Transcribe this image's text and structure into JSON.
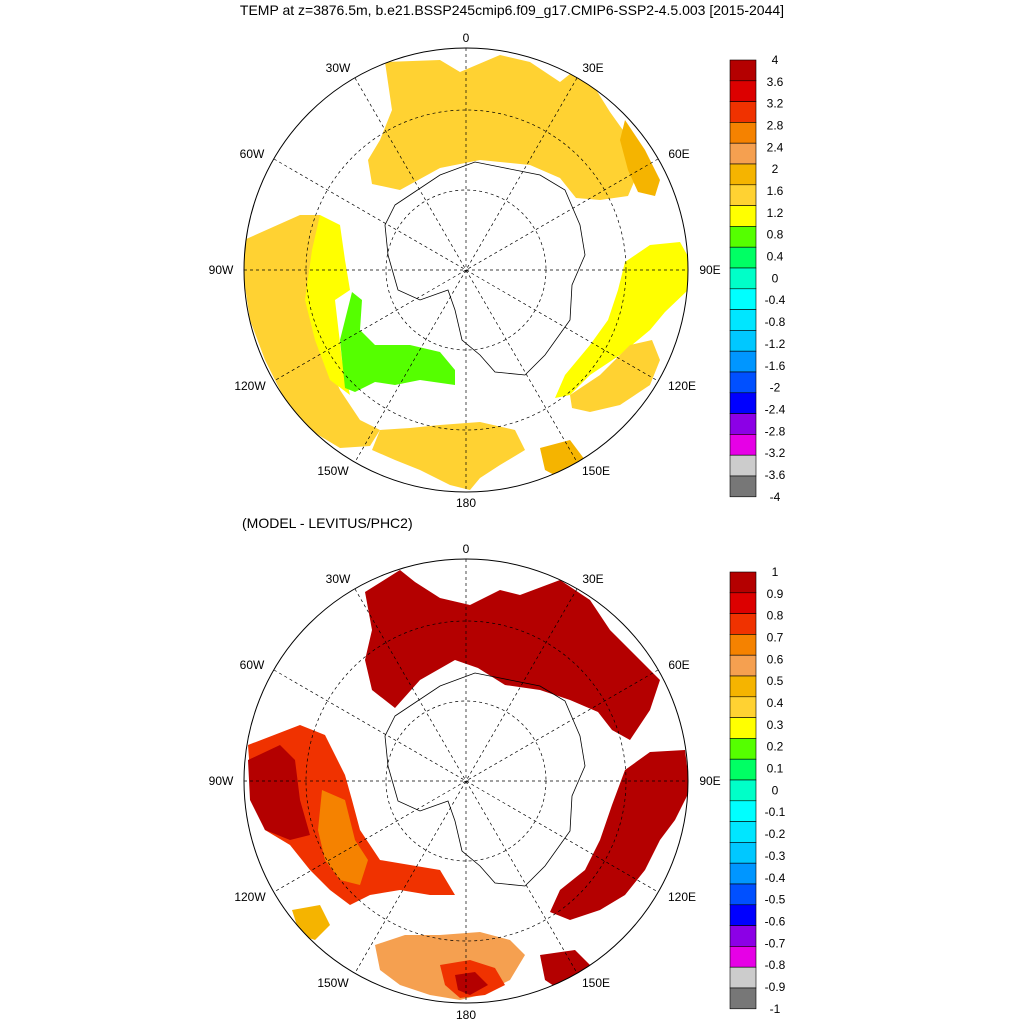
{
  "title": "TEMP at z=3876.5m, b.e21.BSSP245cmip6.f09_g17.CMIP6-SSP2-4.5.003 [2015-2044]",
  "subtitle": "(MODEL - LEVITUS/PHC2)",
  "longitude_labels": {
    "top": "0",
    "bottom": "180",
    "upper_left": "30W",
    "upper_right": "30E",
    "left_upper": "60W",
    "right_upper": "60E",
    "left": "90W",
    "right": "90E",
    "left_lower": "120W",
    "right_lower": "120E",
    "lower_left": "150W",
    "lower_right": "150E"
  },
  "colors": {
    "c4": "#b40000",
    "c36": "#dc0000",
    "c32": "#f03200",
    "c28": "#f58200",
    "c24": "#f5a050",
    "c2": "#f5b400",
    "c16": "#ffd232",
    "c12": "#ffff00",
    "c08": "#55ff00",
    "c04": "#00ff64",
    "c0": "#00ffc8",
    "cm04": "#00ffff",
    "cm08": "#00e6ff",
    "cm12": "#00c8ff",
    "cm16": "#0096ff",
    "cm2": "#0050ff",
    "cm24": "#0000ff",
    "cm28": "#8c00e6",
    "cm32": "#e600e6",
    "cm36": "#cccccc",
    "cm4": "#777777"
  },
  "top_map": {
    "colorbar_labels": [
      "4",
      "3.6",
      "3.2",
      "2.8",
      "2.4",
      "2",
      "1.6",
      "1.2",
      "0.8",
      "0.4",
      "0",
      "-0.4",
      "-0.8",
      "-1.2",
      "-1.6",
      "-2",
      "-2.4",
      "-2.8",
      "-3.2",
      "-3.6",
      "-4"
    ]
  },
  "bottom_map": {
    "colorbar_labels": [
      "1",
      "0.9",
      "0.8",
      "0.7",
      "0.6",
      "0.5",
      "0.4",
      "0.3",
      "0.2",
      "0.1",
      "0",
      "-0.1",
      "-0.2",
      "-0.3",
      "-0.4",
      "-0.5",
      "-0.6",
      "-0.7",
      "-0.8",
      "-0.9",
      "-1"
    ]
  }
}
